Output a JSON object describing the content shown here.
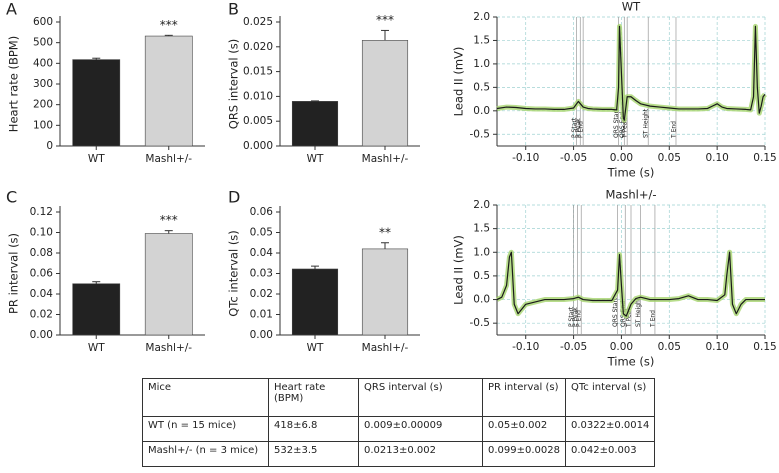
{
  "chart_data": [
    {
      "type": "bar",
      "panel": "A",
      "ylabel": "Heart rate (BPM)",
      "categories": [
        "WT",
        "Mashl+/-"
      ],
      "values": [
        418,
        532
      ],
      "errors": [
        6.8,
        3.5
      ],
      "colors": [
        "#222222",
        "#d3d3d3"
      ],
      "annotation": "***",
      "ylim": [
        0,
        600
      ],
      "yticks": [
        0,
        100,
        200,
        300,
        400,
        500,
        600
      ]
    },
    {
      "type": "bar",
      "panel": "B",
      "ylabel": "QRS interval (s)",
      "categories": [
        "WT",
        "Mashl+/-"
      ],
      "values": [
        0.009,
        0.0213
      ],
      "errors": [
        9e-05,
        0.002
      ],
      "colors": [
        "#222222",
        "#d3d3d3"
      ],
      "annotation": "***",
      "ylim": [
        0,
        0.025
      ],
      "yticks": [
        {
          "value": 0,
          "label": "0.000"
        },
        0.005,
        {
          "value": 0.01,
          "label": "0.010"
        },
        0.015,
        {
          "value": 0.02,
          "label": "0.020"
        },
        0.025
      ]
    },
    {
      "type": "line",
      "title": "WT",
      "xlabel": "Time (s)",
      "ylabel": "Lead II (mV)",
      "x": [
        -0.13,
        -0.12,
        -0.11,
        -0.1,
        -0.09,
        -0.08,
        -0.07,
        -0.06,
        -0.05,
        -0.045,
        -0.04,
        -0.035,
        -0.03,
        -0.02,
        -0.01,
        -0.005,
        -0.003,
        -0.002,
        0.0,
        0.002,
        0.003,
        0.006,
        0.01,
        0.015,
        0.02,
        0.03,
        0.04,
        0.05,
        0.06,
        0.07,
        0.08,
        0.09,
        0.095,
        0.1,
        0.105,
        0.11,
        0.12,
        0.13,
        0.135,
        0.138,
        0.14,
        0.142,
        0.144,
        0.146,
        0.148,
        0.15
      ],
      "series": [
        {
          "color": "#1a1a1a",
          "band_color": "#a6d46e",
          "values": [
            0.05,
            0.08,
            0.07,
            0.05,
            0.04,
            0.04,
            0.03,
            0.03,
            0.06,
            0.2,
            0.08,
            0.05,
            0.04,
            0.03,
            0.03,
            0.02,
            0.5,
            1.8,
            0.8,
            -0.15,
            -0.2,
            0.3,
            0.3,
            0.22,
            0.15,
            0.1,
            0.08,
            0.06,
            0.04,
            0.04,
            0.04,
            0.05,
            0.1,
            0.15,
            0.08,
            0.05,
            0.04,
            0.03,
            0.02,
            0.3,
            1.8,
            0.5,
            -0.05,
            0.1,
            0.3,
            0.35
          ]
        }
      ],
      "markers": [
        {
          "label": "P Start",
          "x": -0.047
        },
        {
          "label": "P Peak",
          "x": -0.043
        },
        {
          "label": "P End",
          "x": -0.04
        },
        {
          "label": "QRS Start",
          "x": -0.003
        },
        {
          "label": "QRS End",
          "x": 0.003
        },
        {
          "label": "T Peak",
          "x": 0.006
        },
        {
          "label": "ST Height",
          "x": 0.028
        },
        {
          "label": "T End",
          "x": 0.057
        }
      ],
      "xlim": [
        -0.13,
        0.15
      ],
      "ylim": [
        -0.75,
        2.0
      ],
      "xticks": [
        {
          "value": -0.1,
          "label": "-0.10"
        },
        -0.05,
        {
          "value": 0,
          "label": "0.00"
        },
        0.05,
        {
          "value": 0.1,
          "label": "0.10"
        },
        0.15
      ],
      "yticks": [
        -0.5,
        {
          "value": 0,
          "label": "0.0"
        },
        0.5,
        {
          "value": 1,
          "label": "1.0"
        },
        1.5,
        {
          "value": 2,
          "label": "2.0"
        }
      ],
      "grid": true,
      "grid_color": "#9fd2d2"
    },
    {
      "type": "bar",
      "panel": "C",
      "ylabel": "PR interval (s)",
      "categories": [
        "WT",
        "Mashl+/-"
      ],
      "values": [
        0.05,
        0.099
      ],
      "errors": [
        0.002,
        0.0028
      ],
      "colors": [
        "#222222",
        "#d3d3d3"
      ],
      "annotation": "***",
      "ylim": [
        0,
        0.12
      ],
      "yticks": [
        {
          "value": 0,
          "label": "0.00"
        },
        0.02,
        0.04,
        0.06,
        0.08,
        {
          "value": 0.1,
          "label": "0.10"
        },
        0.12
      ]
    },
    {
      "type": "bar",
      "panel": "D",
      "ylabel": "QTc interval (s)",
      "categories": [
        "WT",
        "Mashl+/-"
      ],
      "values": [
        0.0322,
        0.042
      ],
      "errors": [
        0.0014,
        0.003
      ],
      "colors": [
        "#222222",
        "#d3d3d3"
      ],
      "annotation": "**",
      "ylim": [
        0,
        0.06
      ],
      "yticks": [
        {
          "value": 0,
          "label": "0.00"
        },
        0.01,
        0.02,
        0.03,
        0.04,
        0.05,
        0.06
      ]
    },
    {
      "type": "line",
      "title": "Mashl+/-",
      "xlabel": "Time (s)",
      "ylabel": "Lead II (mV)",
      "x": [
        -0.13,
        -0.125,
        -0.12,
        -0.117,
        -0.115,
        -0.112,
        -0.108,
        -0.1,
        -0.09,
        -0.08,
        -0.07,
        -0.06,
        -0.05,
        -0.045,
        -0.04,
        -0.03,
        -0.02,
        -0.01,
        -0.004,
        -0.002,
        0.0,
        0.002,
        0.005,
        0.01,
        0.015,
        0.02,
        0.03,
        0.04,
        0.05,
        0.06,
        0.07,
        0.08,
        0.09,
        0.1,
        0.108,
        0.11,
        0.113,
        0.116,
        0.12,
        0.125,
        0.13,
        0.14,
        0.15
      ],
      "series": [
        {
          "color": "#1a1a1a",
          "band_color": "#a6d46e",
          "values": [
            0.0,
            0.05,
            0.3,
            0.9,
            1.0,
            -0.1,
            -0.3,
            -0.1,
            -0.05,
            0.0,
            0.0,
            0.0,
            0.02,
            0.05,
            0.0,
            -0.02,
            -0.02,
            -0.02,
            0.2,
            0.95,
            0.3,
            -0.3,
            -0.35,
            -0.1,
            0.02,
            0.05,
            0.0,
            0.0,
            0.0,
            0.02,
            0.08,
            0.0,
            0.0,
            -0.02,
            0.1,
            0.5,
            1.0,
            -0.1,
            -0.3,
            -0.1,
            0.0,
            0.0,
            0.0
          ]
        }
      ],
      "markers": [
        {
          "label": "P Start",
          "x": -0.05
        },
        {
          "label": "P Peak",
          "x": -0.046
        },
        {
          "label": "P End",
          "x": -0.042
        },
        {
          "label": "QRS Start",
          "x": -0.004
        },
        {
          "label": "QRS End",
          "x": 0.004
        },
        {
          "label": "T Peak",
          "x": 0.01
        },
        {
          "label": "ST Height",
          "x": 0.02
        },
        {
          "label": "T End",
          "x": 0.035
        }
      ],
      "xlim": [
        -0.13,
        0.15
      ],
      "ylim": [
        -0.75,
        2.0
      ],
      "xticks": [
        {
          "value": -0.1,
          "label": "-0.10"
        },
        -0.05,
        {
          "value": 0,
          "label": "0.00"
        },
        0.05,
        {
          "value": 0.1,
          "label": "0.10"
        },
        0.15
      ],
      "yticks": [
        -0.5,
        {
          "value": 0,
          "label": "0.0"
        },
        0.5,
        {
          "value": 1,
          "label": "1.0"
        },
        1.5,
        {
          "value": 2,
          "label": "2.0"
        }
      ],
      "grid": true,
      "grid_color": "#9fd2d2"
    }
  ],
  "table": {
    "header": [
      "Mice",
      "Heart rate (BPM)",
      "QRS interval (s)",
      "PR interval (s)",
      "QTc interval (s)"
    ],
    "rows": [
      [
        "WT (n = 15 mice)",
        "418±6.8",
        "0.009±0.00009",
        "0.05±0.002",
        "0.0322±0.0014"
      ],
      [
        "Mashl+/- (n = 3 mice)",
        "532±3.5",
        "0.0213±0.002",
        "0.099±0.0028",
        "0.042±0.003"
      ]
    ]
  }
}
